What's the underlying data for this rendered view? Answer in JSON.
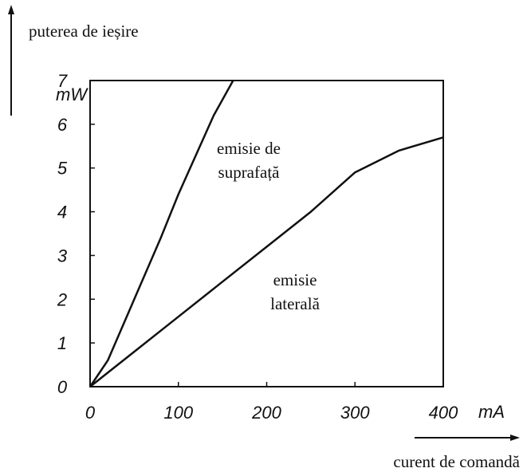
{
  "chart_data": {
    "type": "line",
    "ylabel": "puterea de ieșire",
    "xlabel": "curent de comandă",
    "y_unit": "mW",
    "x_unit": "mA",
    "xlim": [
      0,
      400
    ],
    "ylim": [
      0,
      7
    ],
    "xticks": [
      0,
      100,
      200,
      300,
      400
    ],
    "yticks": [
      0,
      1,
      2,
      3,
      4,
      5,
      6,
      7
    ],
    "grid": false,
    "series": [
      {
        "color": "#111111",
        "x": [
          0,
          20,
          50,
          80,
          100,
          120,
          140,
          162
        ],
        "values": [
          0,
          0.6,
          2,
          3.4,
          4.4,
          5.3,
          6.2,
          7
        ]
      },
      {
        "color": "#111111",
        "x": [
          0,
          50,
          100,
          150,
          200,
          250,
          300,
          350,
          400
        ],
        "values": [
          0,
          0.8,
          1.6,
          2.4,
          3.2,
          4.0,
          4.9,
          5.4,
          5.7
        ]
      }
    ],
    "annotations": [
      {
        "lines": [
          "emisie de",
          "suprafață"
        ]
      },
      {
        "lines": [
          "emisie",
          "laterală"
        ]
      }
    ]
  }
}
